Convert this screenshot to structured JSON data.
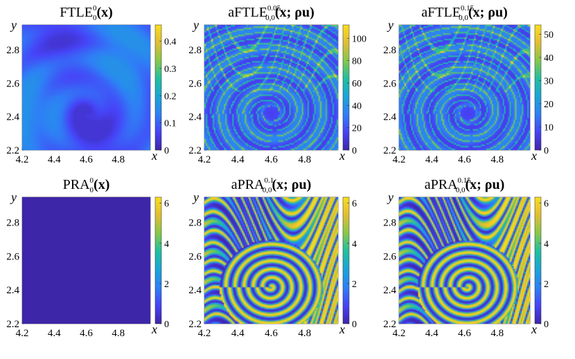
{
  "figure": {
    "colormap": [
      "#3e26a8",
      "#4743f7",
      "#2f7ff6",
      "#1aa5d8",
      "#20bfa0",
      "#86c84a",
      "#e1bd34",
      "#f9de1b"
    ]
  },
  "chart_data": [
    {
      "type": "heatmap",
      "id": "p1",
      "title_main": "FTLE",
      "title_sup": "0",
      "title_sub": "0",
      "title_args": "(x)",
      "xlabel": "x",
      "ylabel": "y",
      "x_ticks": [
        "4.2",
        "4.4",
        "4.6",
        "4.8"
      ],
      "y_ticks": [
        "2.2",
        "2.4",
        "2.6",
        "2.8"
      ],
      "xlim": [
        4.2,
        5.0
      ],
      "ylim": [
        2.2,
        2.95
      ],
      "colorbar": {
        "ticks": [
          "0",
          "0.1",
          "0.2",
          "0.3",
          "0.4"
        ],
        "range": [
          0,
          0.46
        ]
      },
      "pattern": "smooth-low",
      "vortex_center": [
        4.6,
        2.42
      ]
    },
    {
      "type": "heatmap",
      "id": "p2",
      "title_main": "aFTLE",
      "title_sup": "0.05",
      "title_sub": "0,0",
      "title_args": "(x; ρu)",
      "xlabel": "x",
      "ylabel": "y",
      "x_ticks": [
        "4.2",
        "4.4",
        "4.6",
        "4.8"
      ],
      "y_ticks": [
        "2.2",
        "2.4",
        "2.6",
        "2.8"
      ],
      "xlim": [
        4.2,
        5.0
      ],
      "ylim": [
        2.2,
        2.95
      ],
      "colorbar": {
        "ticks": [
          "0",
          "20",
          "40",
          "60",
          "80",
          "100"
        ],
        "range": [
          0,
          112
        ]
      },
      "pattern": "ridges",
      "vortex_center": [
        4.6,
        2.42
      ]
    },
    {
      "type": "heatmap",
      "id": "p3",
      "title_main": "aFTLE",
      "title_sup": "0.15",
      "title_sub": "0,0",
      "title_args": "(x; ρu)",
      "xlabel": "x",
      "ylabel": "y",
      "x_ticks": [
        "4.2",
        "4.4",
        "4.6",
        "4.8"
      ],
      "y_ticks": [
        "2.2",
        "2.4",
        "2.6",
        "2.8"
      ],
      "xlim": [
        4.2,
        5.0
      ],
      "ylim": [
        2.2,
        2.95
      ],
      "colorbar": {
        "ticks": [
          "0",
          "10",
          "20",
          "30",
          "40",
          "50"
        ],
        "range": [
          0,
          54
        ]
      },
      "pattern": "ridges",
      "vortex_center": [
        4.62,
        2.42
      ]
    },
    {
      "type": "heatmap",
      "id": "p4",
      "title_main": "PRA",
      "title_sup": "0",
      "title_sub": "0",
      "title_args": "(x)",
      "xlabel": "x",
      "ylabel": "y",
      "x_ticks": [
        "4.2",
        "4.4",
        "4.6",
        "4.8"
      ],
      "y_ticks": [
        "2.2",
        "2.4",
        "2.6",
        "2.8"
      ],
      "xlim": [
        4.2,
        5.0
      ],
      "ylim": [
        2.2,
        2.95
      ],
      "colorbar": {
        "ticks": [
          "0",
          "2",
          "4",
          "6"
        ],
        "range": [
          0,
          6.3
        ]
      },
      "pattern": "uniform-zero",
      "vortex_center": [
        4.6,
        2.42
      ]
    },
    {
      "type": "heatmap",
      "id": "p5",
      "title_main": "aPRA",
      "title_sup": "0.1",
      "title_sub": "0,0",
      "title_args": "(x; ρu)",
      "xlabel": "x",
      "ylabel": "y",
      "x_ticks": [
        "4.2",
        "4.4",
        "4.6",
        "4.8"
      ],
      "y_ticks": [
        "2.2",
        "2.4",
        "2.6",
        "2.8"
      ],
      "xlim": [
        4.2,
        5.0
      ],
      "ylim": [
        2.2,
        2.95
      ],
      "colorbar": {
        "ticks": [
          "0",
          "2",
          "4",
          "6"
        ],
        "range": [
          0,
          6.3
        ]
      },
      "pattern": "rings",
      "vortex_center": [
        4.6,
        2.42
      ]
    },
    {
      "type": "heatmap",
      "id": "p6",
      "title_main": "aPRA",
      "title_sup": "0.15",
      "title_sub": "0,0",
      "title_args": "(x; ρu)",
      "xlabel": "x",
      "ylabel": "y",
      "x_ticks": [
        "4.2",
        "4.4",
        "4.6",
        "4.8"
      ],
      "y_ticks": [
        "2.2",
        "2.4",
        "2.6",
        "2.8"
      ],
      "xlim": [
        4.2,
        5.0
      ],
      "ylim": [
        2.2,
        2.95
      ],
      "colorbar": {
        "ticks": [
          "0",
          "2",
          "4",
          "6"
        ],
        "range": [
          0,
          6.3
        ]
      },
      "pattern": "rings",
      "vortex_center": [
        4.62,
        2.42
      ]
    }
  ]
}
